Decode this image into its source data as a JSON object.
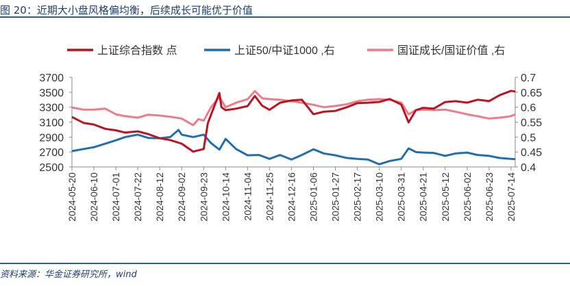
{
  "title": "图 20：近期大小盘风格偏均衡，后续成长可能优于价值",
  "source": "资料来源：华金证券研究所，wind",
  "chart_data": {
    "type": "line",
    "title": "",
    "legend_position": "top",
    "grid": false,
    "y_left": {
      "ylim": [
        2500,
        3700
      ],
      "ticks": [
        "2500",
        "2700",
        "2900",
        "3100",
        "3300",
        "3500",
        "3700"
      ]
    },
    "y_right": {
      "ylim": [
        0.4,
        0.7
      ],
      "ticks": [
        "0.4",
        "0.45",
        "0.5",
        "0.55",
        "0.6",
        "0.65",
        "0.7"
      ]
    },
    "x_ticks": [
      "2024-05-20",
      "2024-06-10",
      "2024-07-01",
      "2024-07-22",
      "2024-08-12",
      "2024-09-02",
      "2024-09-23",
      "2024-10-14",
      "2024-11-04",
      "2024-11-25",
      "2024-12-16",
      "2025-01-06",
      "2025-01-27",
      "2025-02-17",
      "2025-03-10",
      "2025-03-31",
      "2025-04-21",
      "2025-05-12",
      "2025-06-02",
      "2025-06-23",
      "2025-07-14"
    ],
    "xlim": [
      "2024-05-20",
      "2025-07-18"
    ],
    "series": [
      {
        "name": "上证综合指数 点",
        "axis": "left",
        "color": "#c0111f",
        "points": [
          [
            "2024-05-20",
            3170
          ],
          [
            "2024-05-31",
            3090
          ],
          [
            "2024-06-10",
            3068
          ],
          [
            "2024-06-21",
            3010
          ],
          [
            "2024-07-01",
            2990
          ],
          [
            "2024-07-10",
            2960
          ],
          [
            "2024-07-22",
            2976
          ],
          [
            "2024-08-01",
            2940
          ],
          [
            "2024-08-12",
            2885
          ],
          [
            "2024-08-22",
            2860
          ],
          [
            "2024-09-02",
            2811
          ],
          [
            "2024-09-13",
            2705
          ],
          [
            "2024-09-23",
            2740
          ],
          [
            "2024-09-27",
            3087
          ],
          [
            "2024-10-08",
            3490
          ],
          [
            "2024-10-10",
            3300
          ],
          [
            "2024-10-14",
            3260
          ],
          [
            "2024-10-24",
            3280
          ],
          [
            "2024-11-04",
            3315
          ],
          [
            "2024-11-11",
            3450
          ],
          [
            "2024-11-18",
            3320
          ],
          [
            "2024-11-25",
            3265
          ],
          [
            "2024-12-05",
            3360
          ],
          [
            "2024-12-16",
            3390
          ],
          [
            "2024-12-26",
            3400
          ],
          [
            "2025-01-06",
            3206
          ],
          [
            "2025-01-16",
            3240
          ],
          [
            "2025-01-27",
            3250
          ],
          [
            "2025-02-07",
            3300
          ],
          [
            "2025-02-17",
            3355
          ],
          [
            "2025-02-27",
            3360
          ],
          [
            "2025-03-10",
            3370
          ],
          [
            "2025-03-20",
            3410
          ],
          [
            "2025-03-31",
            3335
          ],
          [
            "2025-04-07",
            3096
          ],
          [
            "2025-04-14",
            3260
          ],
          [
            "2025-04-21",
            3291
          ],
          [
            "2025-05-01",
            3280
          ],
          [
            "2025-05-12",
            3369
          ],
          [
            "2025-05-22",
            3380
          ],
          [
            "2025-06-02",
            3361
          ],
          [
            "2025-06-12",
            3400
          ],
          [
            "2025-06-23",
            3381
          ],
          [
            "2025-07-03",
            3460
          ],
          [
            "2025-07-14",
            3519
          ],
          [
            "2025-07-18",
            3510
          ]
        ]
      },
      {
        "name": "上证50/中证1000 ,右",
        "axis": "right",
        "color": "#1f6fb0",
        "points": [
          [
            "2024-05-20",
            0.453
          ],
          [
            "2024-05-31",
            0.46
          ],
          [
            "2024-06-10",
            0.466
          ],
          [
            "2024-06-21",
            0.478
          ],
          [
            "2024-07-01",
            0.489
          ],
          [
            "2024-07-10",
            0.5
          ],
          [
            "2024-07-22",
            0.508
          ],
          [
            "2024-08-01",
            0.497
          ],
          [
            "2024-08-12",
            0.496
          ],
          [
            "2024-08-22",
            0.5
          ],
          [
            "2024-08-30",
            0.524
          ],
          [
            "2024-09-02",
            0.508
          ],
          [
            "2024-09-13",
            0.5
          ],
          [
            "2024-09-23",
            0.508
          ],
          [
            "2024-09-30",
            0.48
          ],
          [
            "2024-10-08",
            0.458
          ],
          [
            "2024-10-14",
            0.494
          ],
          [
            "2024-10-24",
            0.46
          ],
          [
            "2024-11-04",
            0.439
          ],
          [
            "2024-11-15",
            0.44
          ],
          [
            "2024-11-25",
            0.427
          ],
          [
            "2024-12-05",
            0.44
          ],
          [
            "2024-12-16",
            0.425
          ],
          [
            "2024-12-26",
            0.44
          ],
          [
            "2025-01-06",
            0.459
          ],
          [
            "2025-01-16",
            0.445
          ],
          [
            "2025-01-27",
            0.439
          ],
          [
            "2025-02-07",
            0.43
          ],
          [
            "2025-02-17",
            0.427
          ],
          [
            "2025-02-27",
            0.425
          ],
          [
            "2025-03-10",
            0.409
          ],
          [
            "2025-03-20",
            0.42
          ],
          [
            "2025-03-31",
            0.427
          ],
          [
            "2025-04-07",
            0.462
          ],
          [
            "2025-04-14",
            0.45
          ],
          [
            "2025-04-21",
            0.448
          ],
          [
            "2025-05-01",
            0.447
          ],
          [
            "2025-05-12",
            0.437
          ],
          [
            "2025-05-22",
            0.445
          ],
          [
            "2025-06-02",
            0.448
          ],
          [
            "2025-06-12",
            0.44
          ],
          [
            "2025-06-23",
            0.437
          ],
          [
            "2025-07-03",
            0.43
          ],
          [
            "2025-07-14",
            0.427
          ],
          [
            "2025-07-18",
            0.426
          ]
        ]
      },
      {
        "name": "国证成长/国证价值 ,右",
        "axis": "right",
        "color": "#f07a88",
        "points": [
          [
            "2024-05-20",
            0.599
          ],
          [
            "2024-05-31",
            0.592
          ],
          [
            "2024-06-10",
            0.592
          ],
          [
            "2024-06-21",
            0.595
          ],
          [
            "2024-07-01",
            0.576
          ],
          [
            "2024-07-10",
            0.57
          ],
          [
            "2024-07-22",
            0.565
          ],
          [
            "2024-08-01",
            0.575
          ],
          [
            "2024-08-12",
            0.572
          ],
          [
            "2024-08-22",
            0.568
          ],
          [
            "2024-09-02",
            0.562
          ],
          [
            "2024-09-13",
            0.54
          ],
          [
            "2024-09-18",
            0.56
          ],
          [
            "2024-09-23",
            0.555
          ],
          [
            "2024-09-30",
            0.6
          ],
          [
            "2024-10-08",
            0.634
          ],
          [
            "2024-10-14",
            0.6
          ],
          [
            "2024-10-24",
            0.615
          ],
          [
            "2024-11-04",
            0.627
          ],
          [
            "2024-11-11",
            0.654
          ],
          [
            "2024-11-18",
            0.63
          ],
          [
            "2024-11-25",
            0.627
          ],
          [
            "2024-12-05",
            0.625
          ],
          [
            "2024-12-16",
            0.62
          ],
          [
            "2024-12-26",
            0.615
          ],
          [
            "2025-01-06",
            0.608
          ],
          [
            "2025-01-16",
            0.6
          ],
          [
            "2025-01-27",
            0.604
          ],
          [
            "2025-02-07",
            0.61
          ],
          [
            "2025-02-17",
            0.62
          ],
          [
            "2025-02-27",
            0.625
          ],
          [
            "2025-03-10",
            0.627
          ],
          [
            "2025-03-20",
            0.625
          ],
          [
            "2025-03-31",
            0.615
          ],
          [
            "2025-04-07",
            0.576
          ],
          [
            "2025-04-14",
            0.59
          ],
          [
            "2025-04-21",
            0.592
          ],
          [
            "2025-05-01",
            0.59
          ],
          [
            "2025-05-12",
            0.592
          ],
          [
            "2025-05-22",
            0.585
          ],
          [
            "2025-06-02",
            0.576
          ],
          [
            "2025-06-12",
            0.57
          ],
          [
            "2025-06-23",
            0.562
          ],
          [
            "2025-07-03",
            0.565
          ],
          [
            "2025-07-14",
            0.57
          ],
          [
            "2025-07-18",
            0.576
          ]
        ]
      }
    ]
  }
}
